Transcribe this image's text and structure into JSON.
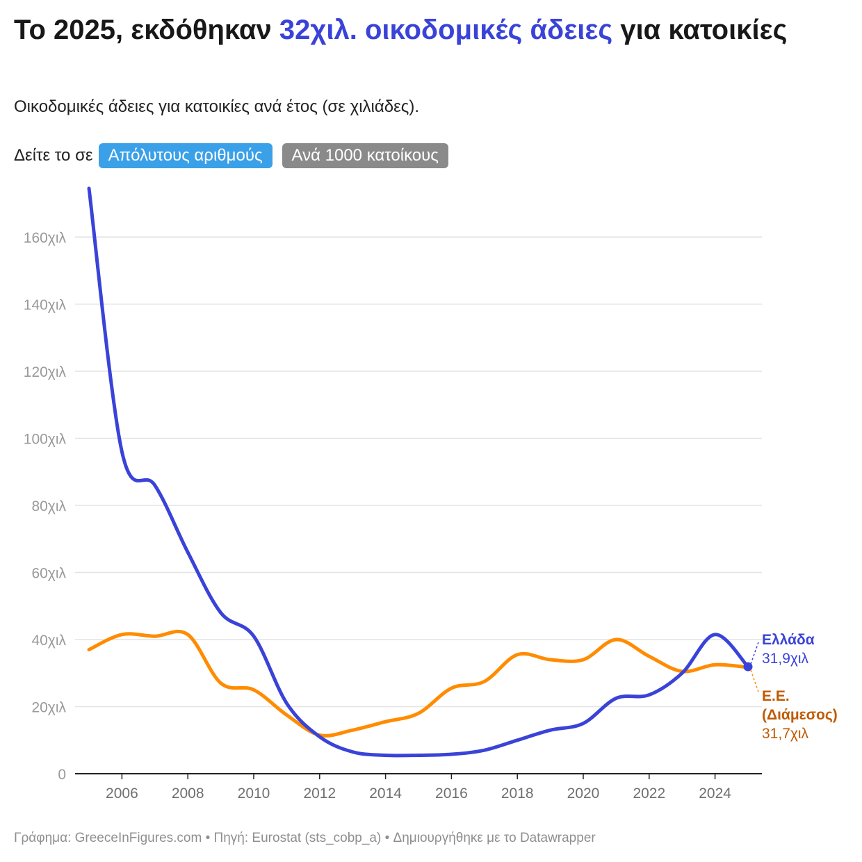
{
  "header": {
    "title_pre": "Το 2025, εκδόθηκαν ",
    "title_highlight": "32χιλ. οικοδομικές άδειες",
    "title_post": " για κατοικίες",
    "subtitle": "Οικοδομικές άδειες για κατοικίες ανά έτος (σε χιλιάδες).",
    "highlight_color": "#3a43d8"
  },
  "toggle": {
    "prefix": "Δείτε το σε",
    "options": [
      "Απόλυτους αριθμούς",
      "Ανά 1000 κατοίκους"
    ],
    "selected": "Απόλυτους αριθμούς"
  },
  "chart_data": {
    "type": "line",
    "x": [
      2005,
      2006,
      2007,
      2008,
      2009,
      2010,
      2011,
      2012,
      2013,
      2014,
      2015,
      2016,
      2017,
      2018,
      2019,
      2020,
      2021,
      2022,
      2023,
      2024,
      2025
    ],
    "series": [
      {
        "name": "Ελλάδα",
        "color": "#3a43d8",
        "values": [
          174.5,
          96,
          86,
          66,
          48,
          41,
          21,
          11,
          6.5,
          5.5,
          5.5,
          5.8,
          7,
          10,
          13,
          15,
          22.5,
          23.5,
          30,
          41.5,
          31.9
        ],
        "end_label": "31,9χιλ"
      },
      {
        "name": "Ε.Ε. (Διάμεσος)",
        "color": "#ff8c00",
        "label_color": "#c05a00",
        "values": [
          37,
          41.5,
          41,
          41.5,
          27,
          25,
          17.5,
          11.5,
          13,
          15.5,
          18,
          25.5,
          27.5,
          35.5,
          34,
          34,
          40,
          35,
          30.5,
          32.5,
          31.7
        ],
        "end_label": "31,7χιλ"
      }
    ],
    "y_ticks": [
      "0",
      "20χιλ",
      "40χιλ",
      "60χιλ",
      "80χιλ",
      "100χιλ",
      "120χιλ",
      "140χιλ",
      "160χιλ"
    ],
    "x_ticks": [
      "2006",
      "2008",
      "2010",
      "2012",
      "2014",
      "2016",
      "2018",
      "2020",
      "2022",
      "2024"
    ],
    "ylim": [
      0,
      175
    ],
    "xlim": [
      2005,
      2025
    ],
    "grid": "horizontal"
  },
  "footer": {
    "text": "Γράφημα: GreeceInFigures.com • Πηγή: Eurostat (sts_cobp_a) • Δημιουργήθηκε με το Datawrapper"
  }
}
